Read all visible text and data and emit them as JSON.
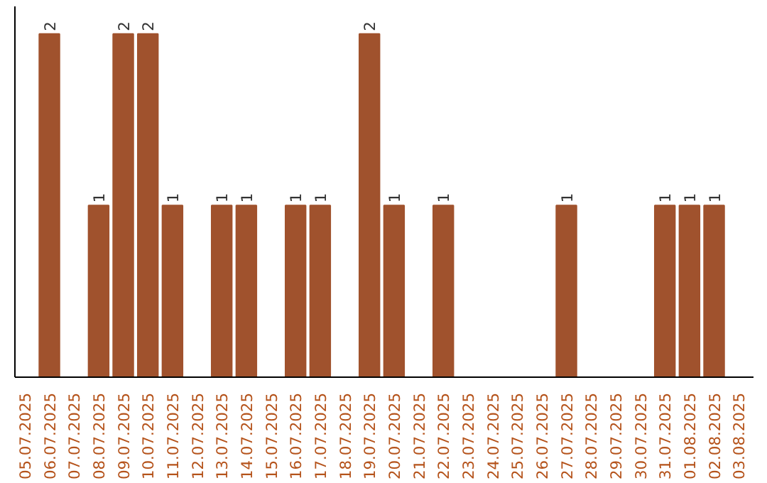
{
  "chart_data": {
    "type": "bar",
    "categories": [
      "05.07.2025",
      "06.07.2025",
      "07.07.2025",
      "08.07.2025",
      "09.07.2025",
      "10.07.2025",
      "11.07.2025",
      "12.07.2025",
      "13.07.2025",
      "14.07.2025",
      "15.07.2025",
      "16.07.2025",
      "17.07.2025",
      "18.07.2025",
      "19.07.2025",
      "20.07.2025",
      "21.07.2025",
      "22.07.2025",
      "23.07.2025",
      "24.07.2025",
      "25.07.2025",
      "26.07.2025",
      "27.07.2025",
      "28.07.2025",
      "29.07.2025",
      "30.07.2025",
      "31.07.2025",
      "01.08.2025",
      "02.08.2025",
      "03.08.2025"
    ],
    "values": [
      0,
      2,
      0,
      1,
      2,
      2,
      1,
      0,
      1,
      1,
      0,
      1,
      1,
      0,
      2,
      1,
      0,
      1,
      0,
      0,
      0,
      0,
      1,
      0,
      0,
      0,
      1,
      1,
      1,
      0
    ],
    "value_labels": [
      null,
      "2",
      null,
      "1",
      "2",
      "2",
      "1",
      null,
      "1",
      "1",
      null,
      "1",
      "1",
      null,
      "2",
      "1",
      null,
      "1",
      null,
      null,
      null,
      null,
      "1",
      null,
      null,
      null,
      "1",
      "1",
      "1",
      null
    ],
    "color": "#a0522d",
    "grid": false
  }
}
